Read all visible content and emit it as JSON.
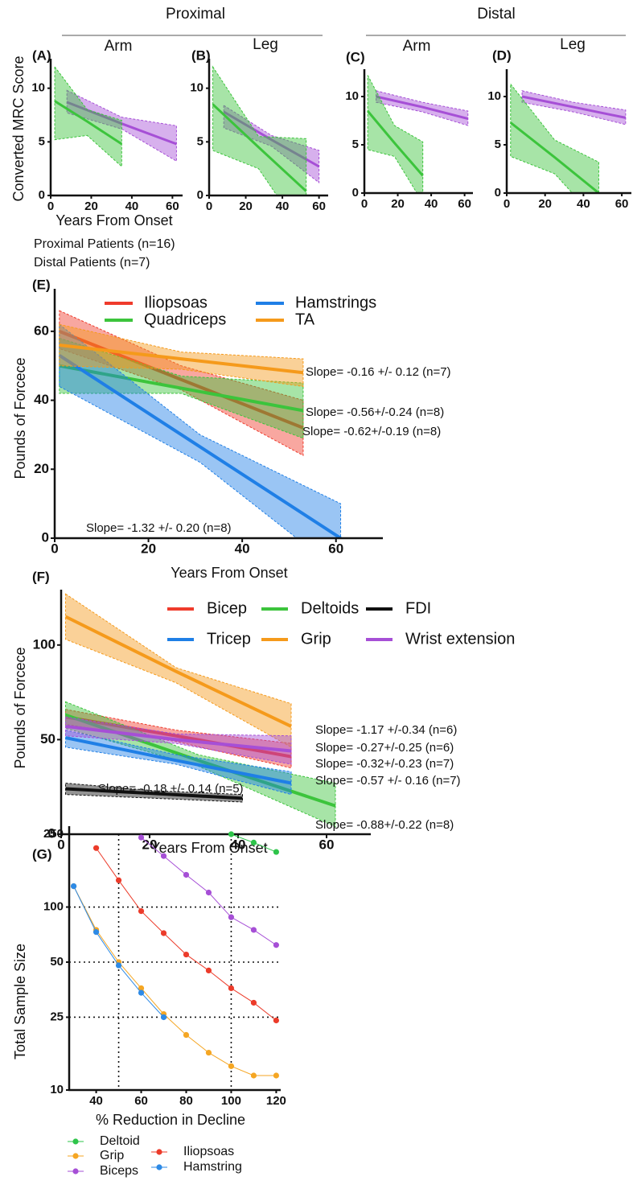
{
  "group_labels": [
    "Proximal",
    "Distal"
  ],
  "chart_data": [
    {
      "type": "line",
      "panel": "(A)",
      "title": "Arm",
      "xlabel": "Years From Onset",
      "ylabel": "Converted MRC Score",
      "xlim": [
        0,
        65
      ],
      "ylim": [
        0,
        12
      ],
      "xticks": [
        0,
        20,
        40,
        60
      ],
      "yticks": [
        0,
        5,
        10
      ],
      "series": [
        {
          "name": "Proximal Patients (n=16)",
          "color": "#a64fd6",
          "x": [
            8,
            35,
            62
          ],
          "values": [
            8.7,
            6.7,
            4.8
          ],
          "upper": [
            9.8,
            7.3,
            6.5
          ],
          "lower": [
            7.7,
            6.2,
            3.2
          ]
        },
        {
          "name": "Distal Patients (n=7)",
          "color": "#3cc43c",
          "x": [
            2,
            18,
            35
          ],
          "values": [
            8.8,
            6.9,
            4.8
          ],
          "upper": [
            12,
            8,
            7
          ],
          "lower": [
            5.2,
            5.6,
            2.7
          ]
        }
      ]
    },
    {
      "type": "line",
      "panel": "(B)",
      "title": "Leg",
      "xlim": [
        0,
        65
      ],
      "ylim": [
        0,
        12
      ],
      "xticks": [
        0,
        20,
        40,
        60
      ],
      "yticks": [
        0,
        5,
        10
      ],
      "series": [
        {
          "color": "#a64fd6",
          "x": [
            8,
            34,
            60
          ],
          "values": [
            7.8,
            5.2,
            2.7
          ],
          "upper": [
            8.4,
            5.6,
            4.2
          ],
          "lower": [
            6.3,
            4.6,
            1.2
          ]
        },
        {
          "color": "#3cc43c",
          "x": [
            2,
            27,
            53
          ],
          "values": [
            8.5,
            4.5,
            0.4
          ],
          "upper": [
            12,
            5.5,
            5.3
          ],
          "lower": [
            4.2,
            2.5,
            -4
          ]
        }
      ]
    },
    {
      "type": "line",
      "panel": "(C)",
      "title": "Arm",
      "xlim": [
        0,
        65
      ],
      "ylim": [
        0,
        12
      ],
      "xticks": [
        0,
        20,
        40,
        60
      ],
      "yticks": [
        0,
        5,
        10
      ],
      "series": [
        {
          "color": "#a64fd6",
          "x": [
            7,
            35,
            62
          ],
          "values": [
            10,
            8.9,
            7.7
          ],
          "upper": [
            10.6,
            9.4,
            8.5
          ],
          "lower": [
            9.4,
            8.4,
            7
          ]
        },
        {
          "color": "#3cc43c",
          "x": [
            2,
            18,
            35
          ],
          "values": [
            8.5,
            5.2,
            1.8
          ],
          "upper": [
            12.2,
            7,
            5.3
          ],
          "lower": [
            4.5,
            3.8,
            -1
          ]
        }
      ]
    },
    {
      "type": "line",
      "panel": "(D)",
      "title": "Leg",
      "xlim": [
        0,
        65
      ],
      "ylim": [
        0,
        12
      ],
      "xticks": [
        0,
        20,
        40,
        60
      ],
      "yticks": [
        0,
        5,
        10
      ],
      "series": [
        {
          "color": "#a64fd6",
          "x": [
            8,
            35,
            62
          ],
          "values": [
            10,
            8.9,
            7.8
          ],
          "upper": [
            10.6,
            9.4,
            8.6
          ],
          "lower": [
            9.4,
            8.4,
            7.1
          ]
        },
        {
          "color": "#3cc43c",
          "x": [
            2,
            25,
            48
          ],
          "values": [
            7.3,
            3.7,
            0
          ],
          "upper": [
            11.3,
            5.5,
            3.2
          ],
          "lower": [
            3.8,
            2,
            -3
          ]
        }
      ]
    },
    {
      "type": "line",
      "panel": "(E)",
      "xlabel": "Years From Onset",
      "ylabel": "Pounds of Forcece",
      "xlim": [
        0,
        70
      ],
      "ylim": [
        0,
        70
      ],
      "xticks": [
        0,
        20,
        40,
        60
      ],
      "yticks": [
        0,
        20,
        40,
        60
      ],
      "series": [
        {
          "name": "Iliopsoas",
          "color": "#ef3b2c",
          "label": "Slope= -0.62+/-0.19 (n=8)",
          "x": [
            1,
            27,
            53
          ],
          "values": [
            60,
            46,
            32
          ],
          "upper": [
            66,
            50,
            40
          ],
          "lower": [
            55,
            43,
            24
          ]
        },
        {
          "name": "Quadriceps",
          "color": "#3cc43c",
          "label": "Slope= -0.56+/-0.24 (n=8)",
          "x": [
            1,
            27,
            53
          ],
          "values": [
            50,
            43.5,
            37
          ],
          "upper": [
            58,
            47,
            45
          ],
          "lower": [
            42,
            42,
            29
          ]
        },
        {
          "name": "Hamstrings",
          "color": "#1f7fe6",
          "label": "Slope= -1.32 +/- 0.20 (n=8)",
          "x": [
            1,
            31,
            61
          ],
          "values": [
            53,
            26.5,
            0
          ],
          "upper": [
            62,
            30,
            10
          ],
          "lower": [
            44,
            22,
            -10
          ]
        },
        {
          "name": "TA",
          "color": "#f59a1b",
          "label": "Slope= -0.16 +/- 0.12 (n=7)",
          "x": [
            1,
            27,
            53
          ],
          "values": [
            56,
            52,
            48
          ],
          "upper": [
            62,
            54,
            52
          ],
          "lower": [
            50,
            49,
            44
          ]
        }
      ]
    },
    {
      "type": "line",
      "panel": "(F)",
      "xlabel": "Years From Onset",
      "ylabel": "Pounds of Forcece",
      "xlim": [
        0,
        70
      ],
      "ylim": [
        0,
        125
      ],
      "xticks": [
        0,
        20,
        40,
        60
      ],
      "yticks": [
        0,
        50,
        100
      ],
      "series": [
        {
          "name": "Bicep",
          "color": "#ef3b2c",
          "label": "Slope= -0.32+/-0.23 (n=7)",
          "x": [
            1,
            26,
            52
          ],
          "values": [
            62,
            52,
            41
          ],
          "upper": [
            66,
            55,
            48
          ],
          "lower": [
            58,
            49,
            35
          ]
        },
        {
          "name": "Deltoids",
          "color": "#3cc43c",
          "label": "Slope= -0.88+/-0.22 (n=8)",
          "x": [
            1,
            31,
            62
          ],
          "values": [
            63,
            39,
            15
          ],
          "upper": [
            70,
            42,
            27
          ],
          "lower": [
            56,
            36,
            4
          ]
        },
        {
          "name": "FDI",
          "color": "#111111",
          "label": "Slope= -0.18 +/- 0.14 (n=5)",
          "x": [
            1,
            21,
            41
          ],
          "values": [
            24,
            21.5,
            19
          ],
          "upper": [
            27,
            23,
            21
          ],
          "lower": [
            21,
            19,
            17
          ]
        },
        {
          "name": "Tricep",
          "color": "#1f7fe6",
          "label": "Slope= -0.57 +/- 0.16 (n=7)",
          "x": [
            1,
            26,
            52
          ],
          "values": [
            51,
            39,
            27
          ],
          "upper": [
            55,
            42,
            33
          ],
          "lower": [
            46,
            37,
            21
          ]
        },
        {
          "name": "Grip",
          "color": "#f59a1b",
          "label": "Slope= -1.17 +/-0.34 (n=6)",
          "x": [
            1,
            26,
            52
          ],
          "values": [
            115,
            86,
            57
          ],
          "upper": [
            127,
            88,
            69
          ],
          "lower": [
            103,
            80,
            46
          ]
        },
        {
          "name": "Wrist extension",
          "color": "#a64fd6",
          "label": "Slope= -0.27+/-0.25 (n=6)",
          "x": [
            1,
            26,
            52
          ],
          "values": [
            57,
            50,
            44
          ],
          "upper": [
            62,
            53,
            52
          ],
          "lower": [
            52,
            48,
            37
          ]
        }
      ]
    },
    {
      "type": "line",
      "panel": "(G)",
      "xlabel": "% Reduction in Decline",
      "ylabel": "Total Sample Size",
      "log_y": true,
      "markers": true,
      "xgrid": [
        50,
        100
      ],
      "xlim": [
        28,
        122
      ],
      "ylim": [
        10,
        250
      ],
      "xticks": [
        40,
        60,
        80,
        100,
        120
      ],
      "yticks": [
        10,
        25,
        50,
        100,
        250
      ],
      "series": [
        {
          "name": "Deltoid",
          "color": "#2ec44a",
          "x": [
            100,
            110,
            120
          ],
          "values": [
            250,
            225,
            200
          ]
        },
        {
          "name": "Grip",
          "color": "#f5a623",
          "x": [
            30,
            40,
            50,
            60,
            70,
            80,
            90,
            100,
            110,
            120
          ],
          "values": [
            130,
            75,
            50,
            36,
            26,
            20,
            16,
            13.5,
            12,
            12
          ]
        },
        {
          "name": "Biceps",
          "color": "#a64fd6",
          "x": [
            60,
            70,
            80,
            90,
            100,
            110,
            120
          ],
          "values": [
            240,
            190,
            150,
            120,
            88,
            75,
            62
          ]
        },
        {
          "name": "Iliopsoas",
          "color": "#ec3b2a",
          "x": [
            40,
            50,
            60,
            70,
            80,
            90,
            100,
            110,
            120
          ],
          "values": [
            210,
            140,
            95,
            72,
            55,
            45,
            36,
            30,
            24
          ]
        },
        {
          "name": "Hamstring",
          "color": "#2d8ae6",
          "x": [
            30,
            40,
            50,
            60,
            70
          ],
          "values": [
            130,
            73,
            48,
            34,
            25
          ]
        }
      ]
    }
  ]
}
